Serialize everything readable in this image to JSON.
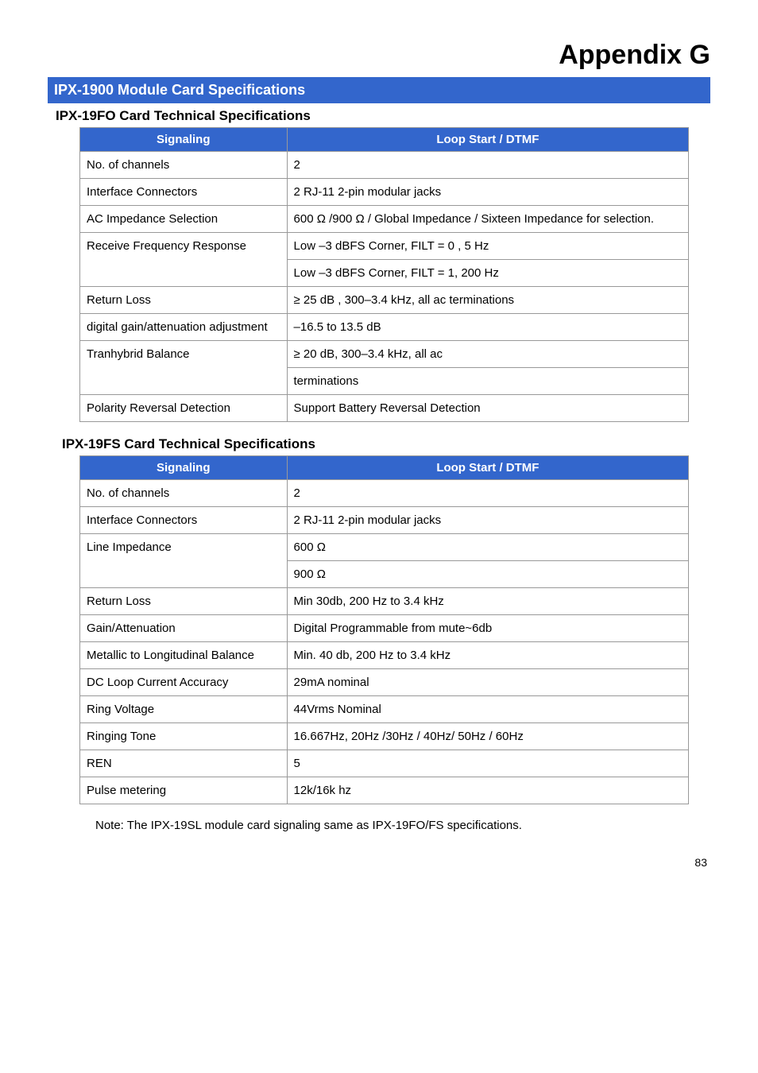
{
  "appendix_title": "Appendix G",
  "section_bar": "IPX-1900 Module Card Specifications",
  "fo": {
    "heading": "IPX-19FO Card Technical Specifications",
    "header": {
      "col1": "Signaling",
      "col2": "Loop Start / DTMF"
    },
    "rows": {
      "channels": {
        "label": "No. of channels",
        "value": "2"
      },
      "connectors": {
        "label": "Interface Connectors",
        "value": "2 RJ-11 2-pin modular jacks"
      },
      "imped": {
        "label": "AC Impedance Selection",
        "value": "600 Ω /900 Ω / Global Impedance / Sixteen Impedance for selection."
      },
      "recvfreq": {
        "label": "Receive Frequency Response",
        "line1": "Low –3 dBFS Corner, FILT = 0 , 5 Hz",
        "line2": "Low –3 dBFS Corner, FILT = 1, 200 Hz"
      },
      "return": {
        "label": "Return Loss",
        "value": "≥ 25 dB , 300–3.4 kHz, all ac terminations"
      },
      "gain": {
        "label": "digital gain/attenuation adjustment",
        "value": "–16.5 to 13.5 dB"
      },
      "tranhy": {
        "label": "Tranhybrid Balance",
        "line1": "≥ 20 dB, 300–3.4 kHz, all ac",
        "line2": "terminations"
      },
      "polarity": {
        "label": "Polarity Reversal Detection",
        "value": "Support Battery Reversal Detection"
      }
    }
  },
  "fs": {
    "heading": "IPX-19FS Card Technical Specifications",
    "header": {
      "col1": "Signaling",
      "col2": "Loop Start / DTMF"
    },
    "rows": {
      "channels": {
        "label": "No. of channels",
        "value": "2"
      },
      "connectors": {
        "label": "Interface Connectors",
        "value": "2 RJ-11 2-pin modular jacks"
      },
      "lineimp": {
        "label": "Line Impedance",
        "line1": "600 Ω",
        "line2": "900 Ω"
      },
      "return": {
        "label": "Return Loss",
        "value": "Min 30db, 200 Hz to 3.4 kHz"
      },
      "gain": {
        "label": "Gain/Attenuation",
        "value": "Digital Programmable from mute~6db"
      },
      "mlbal": {
        "label": "Metallic to Longitudinal Balance",
        "value": "Min. 40 db, 200 Hz to 3.4 kHz"
      },
      "dcloop": {
        "label": "DC Loop Current Accuracy",
        "value": "29mA nominal"
      },
      "ringv": {
        "label": "Ring Voltage",
        "value": "44Vrms Nominal"
      },
      "ringt": {
        "label": "Ringing Tone",
        "value": "16.667Hz, 20Hz /30Hz / 40Hz/ 50Hz / 60Hz"
      },
      "ren": {
        "label": "REN",
        "value": "5"
      },
      "pulse": {
        "label": "Pulse metering",
        "value": "12k/16k hz"
      }
    }
  },
  "note": "Note: The IPX-19SL module card signaling same as IPX-19FO/FS specifications.",
  "pagenum": "83",
  "colors": {
    "header_bg": "#3366cc",
    "header_fg": "#ffffff",
    "border": "#999999",
    "text": "#000000",
    "page_bg": "#ffffff"
  }
}
